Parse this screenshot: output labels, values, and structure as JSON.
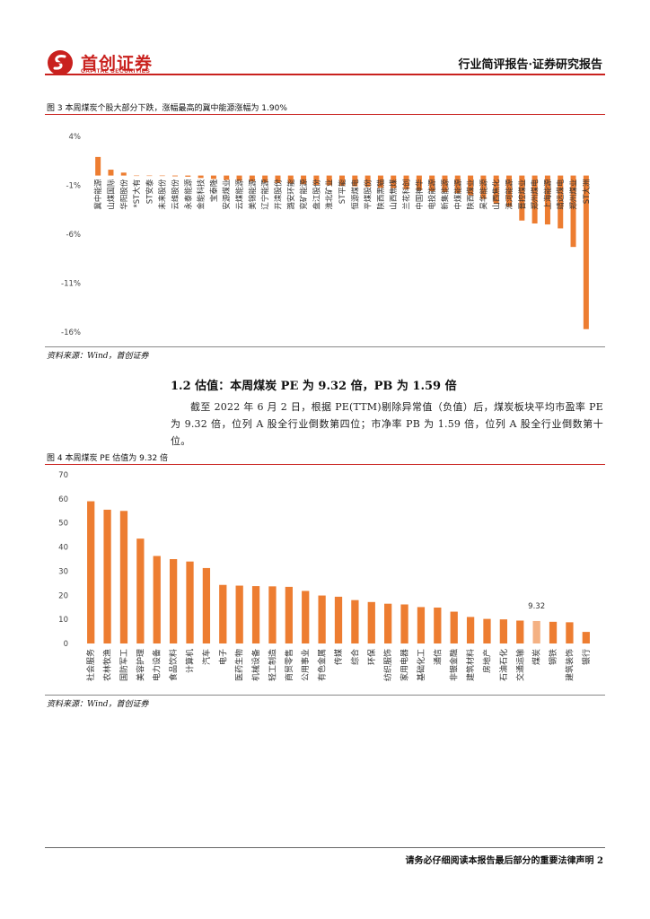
{
  "header": {
    "logo_cn": "首创证券",
    "logo_en": "CAPITAL SECURITIES",
    "right_title": "行业简评报告·证券研究报告"
  },
  "figure3": {
    "title": "图 3 本周煤炭个股大部分下跌，涨幅最高的冀中能源涨幅为 1.90%",
    "source": "资料来源：Wind，首创证券"
  },
  "section": {
    "title": "1.2 估值：本周煤炭 PE 为 9.32 倍，PB 为 1.59 倍",
    "paragraph": "截至 2022 年 6 月 2 日，根据 PE(TTM)剔除异常值（负值）后，煤炭板块平均市盈率 PE 为 9.32 倍，位列 A 股全行业倒数第四位；市净率 PB 为 1.59 倍，位列 A 股全行业倒数第十位。"
  },
  "figure4": {
    "title": "图 4 本周煤炭 PE 估值为 9.32 倍",
    "source": "资料来源：Wind，首创证券"
  },
  "footer": {
    "text": "请务必仔细阅读本报告最后部分的重要法律声明 2"
  },
  "colors": {
    "bar": "#ED7D31",
    "highlight": "#F4B183",
    "brand": "#c9211e"
  },
  "chart_data": [
    {
      "type": "bar",
      "title": "图 3 本周煤炭个股大部分下跌，涨幅最高的冀中能源涨幅为 1.90%",
      "ylim": [
        -16,
        4
      ],
      "yticks": [
        "4%",
        "-1%",
        "-6%",
        "-11%",
        "-16%"
      ],
      "ytick_values": [
        4,
        -1,
        -6,
        -11,
        -16
      ],
      "grid": false,
      "categories": [
        "冀中能源",
        "山煤国际",
        "华阳股份",
        "*ST大有",
        "ST安泰",
        "未来股份",
        "云维股份",
        "永泰能源",
        "金能科技",
        "宝泰隆",
        "安源煤业",
        "云煤能源",
        "美锦能源",
        "辽宁能源",
        "开滦股份",
        "潞安环能",
        "兖矿能源",
        "盘江股份",
        "淮北矿业",
        "ST平能",
        "恒源煤电",
        "平煤股份",
        "陕西黑猫",
        "山西焦煤",
        "兰花科创",
        "中国神华",
        "电投能源",
        "新集能源",
        "中煤能源",
        "陕西煤业",
        "昊华能源",
        "山西焦化",
        "淮河能源",
        "晋控煤业",
        "郑州煤电",
        "上海能源",
        "靖远煤电",
        "郑州煤业",
        "ST大洲"
      ],
      "values": [
        1.9,
        0.6,
        0.3,
        0.0,
        0.0,
        -0.05,
        -0.08,
        -0.12,
        -0.25,
        -0.35,
        -0.45,
        -0.55,
        -0.6,
        -0.7,
        -0.75,
        -0.8,
        -0.9,
        -0.95,
        -1.0,
        -1.05,
        -1.1,
        -1.15,
        -1.25,
        -1.3,
        -1.4,
        -1.5,
        -1.6,
        -1.7,
        -1.8,
        -2.0,
        -2.4,
        -2.9,
        -3.2,
        -4.6,
        -4.9,
        -5.0,
        -5.4,
        -7.3,
        -15.7
      ]
    },
    {
      "type": "bar",
      "title": "图 4 本周煤炭 PE 估值为 9.32 倍",
      "ylim": [
        0,
        70
      ],
      "yticks": [
        0,
        10,
        20,
        30,
        40,
        50,
        60,
        70
      ],
      "grid": false,
      "highlight_category": "煤炭",
      "highlight_label": "9.32",
      "categories": [
        "社会服务",
        "农林牧渔",
        "国防军工",
        "美容护理",
        "电力设备",
        "食品饮料",
        "计算机",
        "汽车",
        "电子",
        "医药生物",
        "机械设备",
        "轻工制造",
        "商贸零售",
        "公用事业",
        "有色金属",
        "传媒",
        "综合",
        "环保",
        "纺织服饰",
        "家用电器",
        "基础化工",
        "通信",
        "非银金融",
        "建筑材料",
        "房地产",
        "石油石化",
        "交通运输",
        "煤炭",
        "钢铁",
        "建筑装饰",
        "银行"
      ],
      "values": [
        59,
        55.5,
        55,
        43.5,
        36.3,
        35,
        34,
        31.3,
        24.3,
        24,
        23.8,
        23.7,
        23.5,
        21.8,
        19.9,
        19.4,
        18,
        17.2,
        16.5,
        16.2,
        15.1,
        14.9,
        13.2,
        11,
        10.2,
        10,
        9.5,
        9.32,
        9,
        8.8,
        4.8
      ]
    }
  ]
}
